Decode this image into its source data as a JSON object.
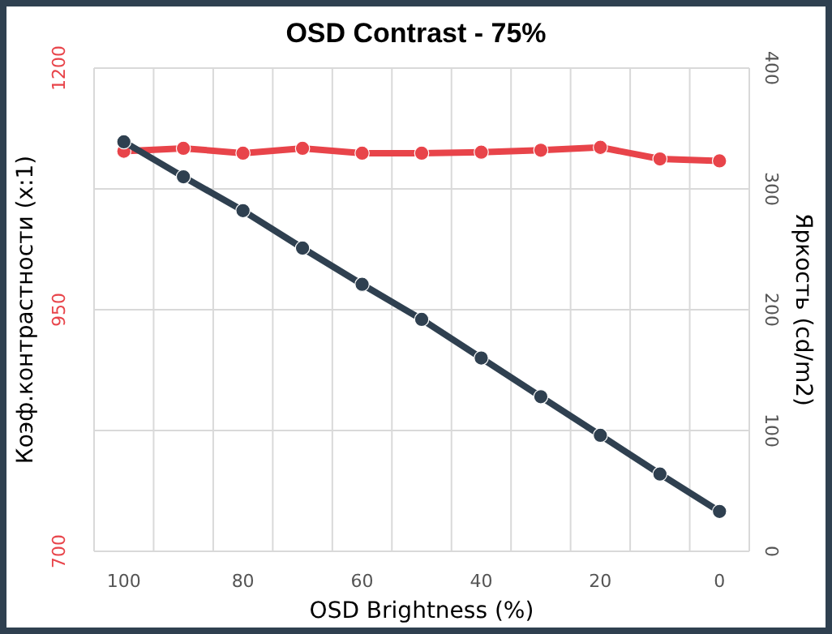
{
  "chart_data": {
    "type": "line",
    "title": "OSD Contrast - 75%",
    "xlabel": "OSD Brightness (%)",
    "ylabel": "Коэф.контрастности (x:1)",
    "y2label": "Яркость (cd/m2)",
    "categories": [
      "100",
      null,
      "80",
      null,
      "60",
      null,
      "40",
      null,
      "20",
      null,
      "0"
    ],
    "ylim": [
      700,
      1200
    ],
    "yticks": [
      700,
      950,
      1200
    ],
    "y2lim": [
      0,
      400
    ],
    "y2ticks": [
      0,
      100,
      200,
      300,
      400
    ],
    "grid": true,
    "marker": "circle",
    "series": [
      {
        "color": "#e8444a",
        "values": [
          1114,
          1117,
          1112,
          1117,
          1112,
          1112,
          1113,
          1115,
          1118,
          1106,
          1104
        ]
      },
      {
        "color": "#2f4050",
        "axis": "y2",
        "values": [
          339,
          310,
          282,
          251,
          221,
          192,
          160,
          128,
          96,
          64,
          33
        ]
      }
    ]
  }
}
